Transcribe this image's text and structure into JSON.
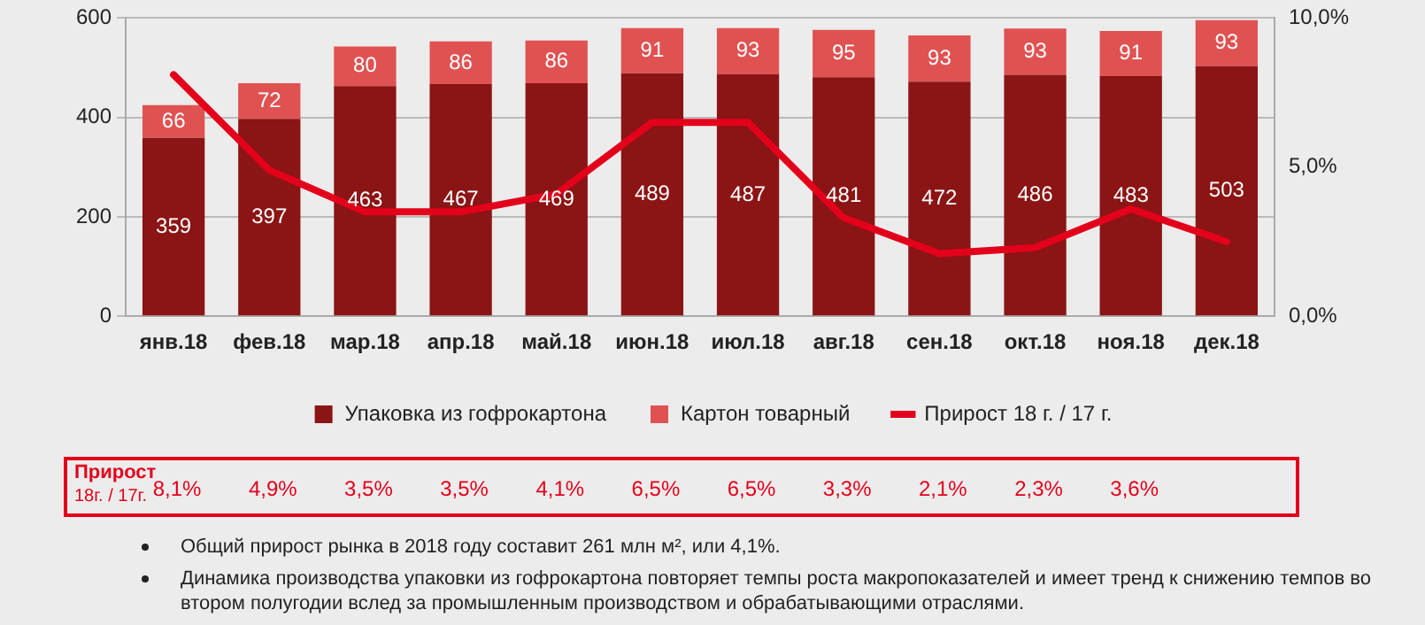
{
  "chart_data": {
    "type": "bar",
    "stacked": true,
    "categories": [
      "янв.18",
      "фев.18",
      "мар.18",
      "апр.18",
      "май.18",
      "июн.18",
      "июл.18",
      "авг.18",
      "сен.18",
      "окт.18",
      "ноя.18",
      "дек.18"
    ],
    "series": [
      {
        "name": "Упаковка из гофрокартона",
        "color": "#8b1414",
        "values": [
          359,
          397,
          463,
          467,
          469,
          489,
          487,
          481,
          472,
          486,
          483,
          503
        ]
      },
      {
        "name": "Картон товарный",
        "color": "#e05252",
        "values": [
          66,
          72,
          80,
          86,
          86,
          91,
          93,
          95,
          93,
          93,
          91,
          93
        ]
      },
      {
        "name": "Прирост 18 г. / 17 г.",
        "type": "line",
        "axis": "y2",
        "color": "#e3001b",
        "values": [
          8.1,
          4.9,
          3.5,
          3.5,
          4.1,
          6.5,
          6.5,
          3.3,
          2.1,
          2.3,
          3.6,
          2.5
        ],
        "value_labels": [
          "8,1%",
          "4,9%",
          "3,5%",
          "3,5%",
          "4,1%",
          "6,5%",
          "6,5%",
          "3,3%",
          "2,1%",
          "2,3%",
          "3,6%",
          null
        ]
      }
    ],
    "ylim": [
      0,
      600
    ],
    "yticks": [
      0,
      200,
      400,
      600
    ],
    "y2lim": [
      0,
      10
    ],
    "y2ticks": [
      {
        "value": 0,
        "label": "0,0%"
      },
      {
        "value": 5,
        "label": "5,0%"
      },
      {
        "value": 10,
        "label": "10,0%"
      }
    ],
    "data_labels": true,
    "grid": "y",
    "legend": "bottom",
    "marker": "none",
    "line_style": "solid",
    "annotations": [
      "Прирост",
      "18г. / 17г.",
      "Общий прирост рынка в 2018 году составит 261 млн м², или 4,1%.",
      "Динамика производства упаковки из гофрокартона повторяет темпы роста макропоказателей и имеет тренд к снижению темпов во втором полугодии вслед за промышленным производством и обрабатывающими отраслями."
    ]
  }
}
